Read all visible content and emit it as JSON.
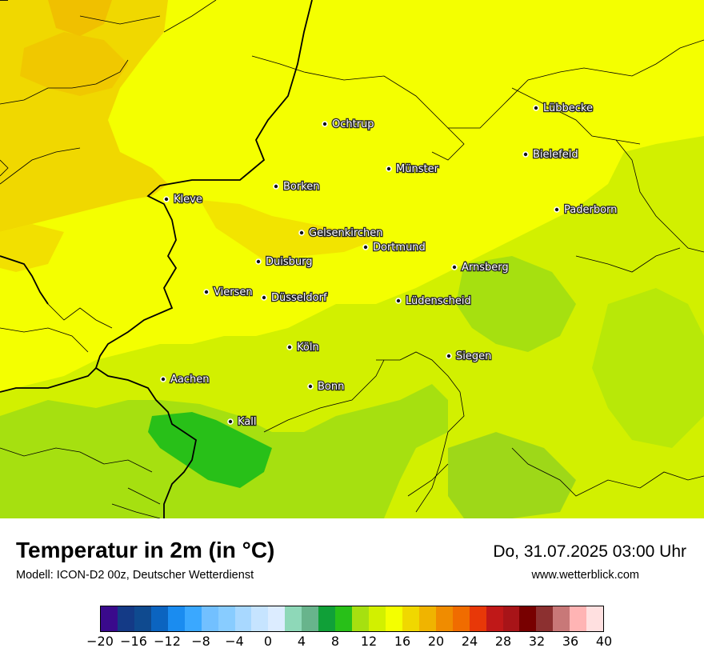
{
  "map": {
    "cities": [
      {
        "name": "Lübbecke"
      },
      {
        "name": "Ochtrup"
      },
      {
        "name": "Bielefeld"
      },
      {
        "name": "Münster"
      },
      {
        "name": "Kleve"
      },
      {
        "name": "Borken"
      },
      {
        "name": "Paderborn"
      },
      {
        "name": "Gelsenkirchen"
      },
      {
        "name": "Dortmund"
      },
      {
        "name": "Duisburg"
      },
      {
        "name": "Arnsberg"
      },
      {
        "name": "Viersen"
      },
      {
        "name": "Düsseldorf"
      },
      {
        "name": "Lüdenscheid"
      },
      {
        "name": "Köln"
      },
      {
        "name": "Siegen"
      },
      {
        "name": "Aachen"
      },
      {
        "name": "Bonn"
      },
      {
        "name": "Kall"
      }
    ]
  },
  "footer": {
    "title": "Temperatur in 2m (in °C)",
    "model": "Modell: ICON-D2 00z, Deutscher Wetterdienst",
    "datetime": "Do, 31.07.2025 03:00 Uhr",
    "site": "www.wetterblick.com"
  },
  "legend": {
    "colors": [
      "#3a0a8c",
      "#143a86",
      "#0f4a8f",
      "#0b64c0",
      "#1a8cf0",
      "#3aa8ff",
      "#72c0ff",
      "#88ccff",
      "#a8d8ff",
      "#c6e4ff",
      "#dcecff",
      "#8ed8b8",
      "#68b48c",
      "#10a038",
      "#28c018",
      "#a6e010",
      "#d2f000",
      "#f4ff00",
      "#f0d800",
      "#f0b400",
      "#f08c00",
      "#f06c00",
      "#e83808",
      "#c01818",
      "#a81418",
      "#780000",
      "#8c3030",
      "#c87878",
      "#ffb4b4",
      "#ffe0e0"
    ],
    "ticks": [
      "−20",
      "−16",
      "−12",
      "−8",
      "−4",
      "0",
      "4",
      "8",
      "12",
      "16",
      "20",
      "24",
      "28",
      "32",
      "36",
      "40"
    ]
  }
}
